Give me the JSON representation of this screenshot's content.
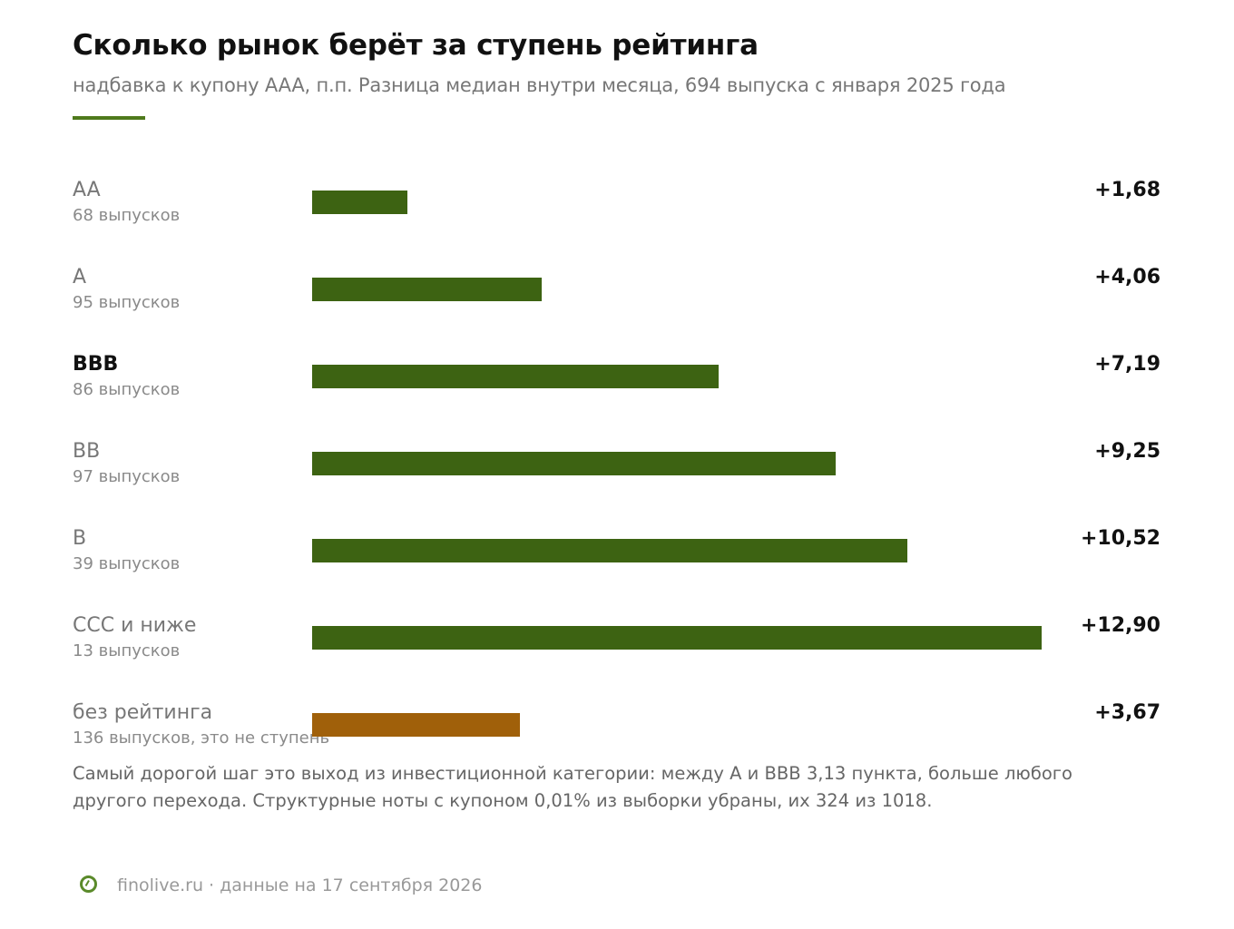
{
  "title": "Сколько рынок берёт за ступень рейтинга",
  "subtitle": "надбавка к купону AAA, п.п. Разница медиан внутри месяца, 694 выпуска с января 2025 года",
  "colors": {
    "accent": "#4f7a1c",
    "bar_rated": "#3d6312",
    "bar_unrated": "#a0600a",
    "text_dark": "#111111",
    "text_muted": "#777777"
  },
  "chart_data": {
    "type": "bar",
    "orientation": "horizontal",
    "categories": [
      "AA",
      "A",
      "BBB",
      "BB",
      "B",
      "CCC и ниже",
      "без рейтинга"
    ],
    "values": [
      1.68,
      4.06,
      7.19,
      9.25,
      10.52,
      12.9,
      3.67
    ],
    "value_labels": [
      "+1,68",
      "+4,06",
      "+7,19",
      "+9,25",
      "+10,52",
      "+12,90",
      "+3,67"
    ],
    "counts": [
      "68 выпусков",
      "95 выпусков",
      "86 выпусков",
      "97 выпусков",
      "39 выпусков",
      "13 выпусков",
      "136 выпусков, это не ступень"
    ],
    "highlighted": [
      "BBB"
    ],
    "xlim": [
      0,
      12.9
    ],
    "grid": false,
    "legend": false,
    "title": "Сколько рынок берёт за ступень рейтинга",
    "subtitle": "надбавка к купону AAA, п.п. Разница медиан внутри месяца, 694 выпуска с января 2025 года"
  },
  "note": "Самый дорогой шаг это выход из инвестиционной категории: между A и BBB 3,13 пункта, больше любого другого перехода. Структурные ноты с купоном 0,01% из выборки убраны, их 324 из 1018.",
  "footer": {
    "logo_icon": "finolive-logo-icon",
    "text": "finolive.ru · данные на 17 сентября 2026"
  }
}
